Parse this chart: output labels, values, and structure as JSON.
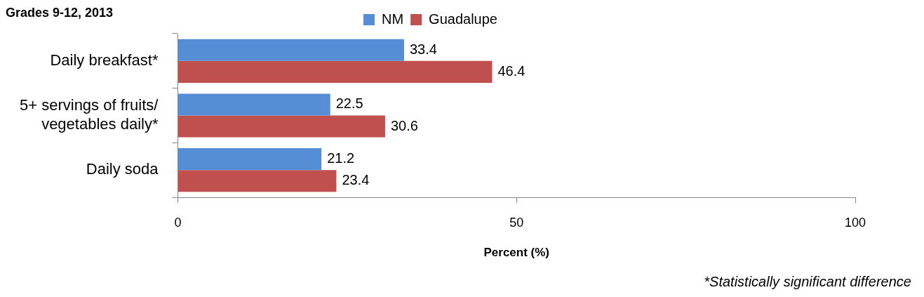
{
  "chart_data": {
    "type": "bar",
    "orientation": "horizontal",
    "title": "Grades 9-12, 2013",
    "xlabel": "Percent (%)",
    "categories": [
      "Daily breakfast*",
      "5+ servings of fruits/ vegetables daily*",
      "Daily soda"
    ],
    "series": [
      {
        "name": "NM",
        "color": "#558ed5",
        "values": [
          33.4,
          22.5,
          21.2
        ]
      },
      {
        "name": "Guadalupe",
        "color": "#c0504d",
        "values": [
          46.4,
          30.6,
          23.4
        ]
      }
    ],
    "xlim": [
      0,
      100
    ],
    "xticks": [
      0,
      50,
      100
    ],
    "grid": false,
    "legend": "top",
    "data_labels": true,
    "annotations": [
      "*Statistically significant difference"
    ]
  }
}
